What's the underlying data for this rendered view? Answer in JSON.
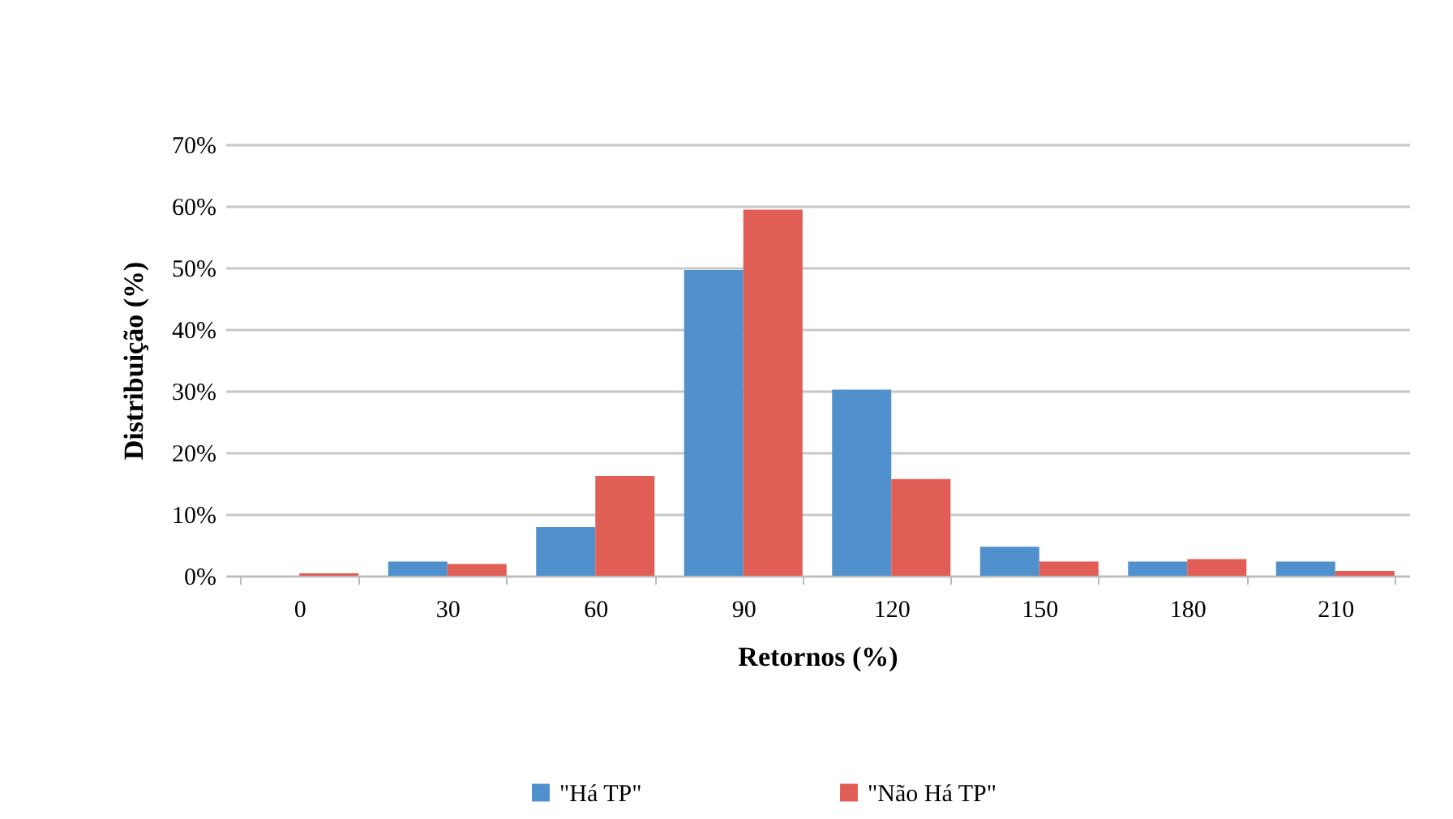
{
  "chart_data": {
    "type": "bar",
    "xlabel": "Retornos (%)",
    "ylabel": "Distribuição (%)",
    "categories": [
      "0",
      "30",
      "60",
      "90",
      "120",
      "150",
      "180",
      "210"
    ],
    "series": [
      {
        "name": "\"Há TP\"",
        "color": "#4f90cd",
        "values": [
          null,
          2.3,
          7.9,
          49.6,
          30.2,
          4.7,
          2.3,
          2.3
        ]
      },
      {
        "name": "\"Não Há TP\"",
        "color": "#e05e55",
        "values": [
          0.4,
          1.9,
          16.2,
          59.4,
          15.7,
          2.3,
          2.7,
          0.8
        ]
      }
    ],
    "ylim": [
      0,
      70
    ],
    "yticks": [
      {
        "value": 0,
        "label": "0%"
      },
      {
        "value": 10,
        "label": "10%"
      },
      {
        "value": 20,
        "label": "20%"
      },
      {
        "value": 30,
        "label": "30%"
      },
      {
        "value": 40,
        "label": "40%"
      },
      {
        "value": 50,
        "label": "50%"
      },
      {
        "value": 60,
        "label": "60%"
      },
      {
        "value": 70,
        "label": "70%"
      }
    ],
    "grid": "y",
    "legend": "bottom"
  }
}
